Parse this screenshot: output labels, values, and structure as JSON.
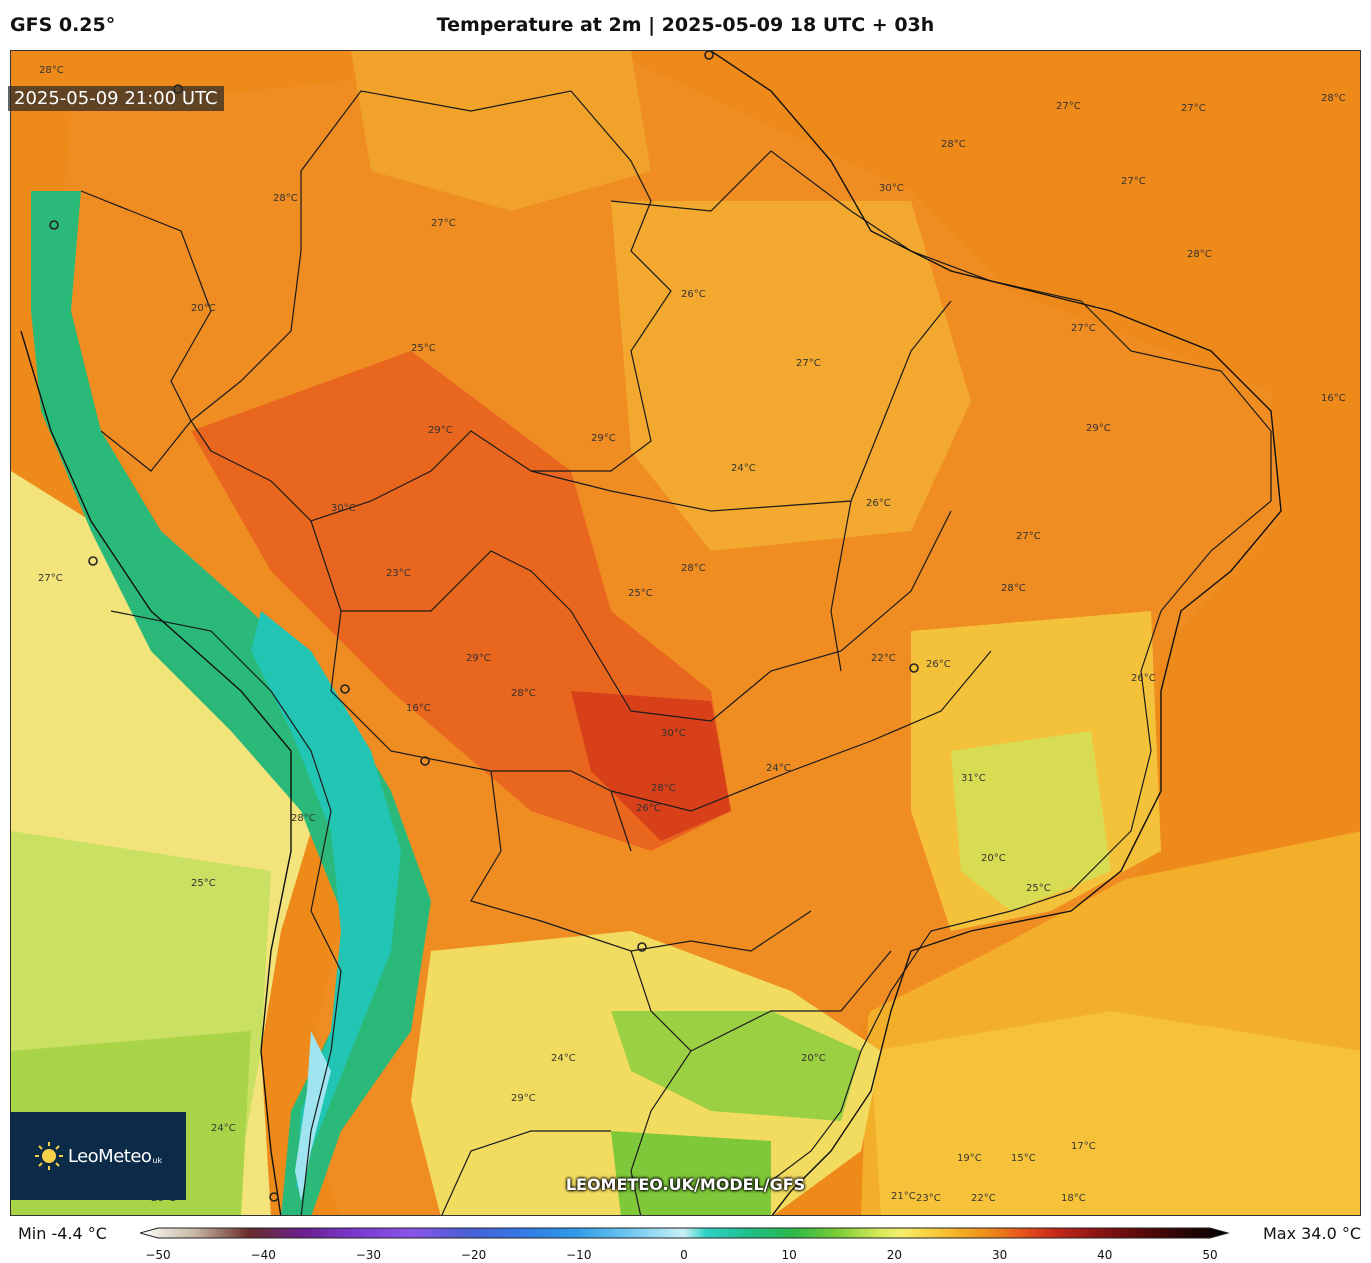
{
  "header": {
    "model": "GFS 0.25°",
    "title": "Temperature at 2m | 2025-05-09 18 UTC + 03h"
  },
  "map": {
    "timestamp": "2025-05-09 21:00 UTC",
    "watermark": "LEOMETEO.UK/MODEL/GFS",
    "isotherm_labels": [
      "28°C",
      "27°C",
      "27°C",
      "28°C",
      "27°C",
      "28°C",
      "28°C",
      "30°C",
      "27°C",
      "28°C",
      "29°C",
      "26°C",
      "27°C",
      "29°C",
      "28°C",
      "26°C",
      "27°C",
      "29°C",
      "27°C",
      "28°C",
      "24°C",
      "29°C",
      "28°C",
      "26°C",
      "25°C",
      "30°C",
      "30°C",
      "28°C",
      "26°C",
      "22°C",
      "27°C",
      "24°C",
      "26°C",
      "29°C",
      "31°C",
      "20°C",
      "20°C",
      "24°C",
      "25°C",
      "23°C",
      "19°C",
      "17°C",
      "15°C",
      "16°C",
      "18°C",
      "21°C",
      "22°C",
      "23°C",
      "24°C",
      "25°C",
      "20°C",
      "26°C",
      "28°C",
      "16°C",
      "25°C"
    ]
  },
  "logo": {
    "name": "LeoMeteo",
    "suffix": "uk"
  },
  "legend": {
    "min": "Min -4.4 °C",
    "max": "Max 34.0 °C",
    "ticks": [
      "−50",
      "−40",
      "−30",
      "−20",
      "−10",
      "0",
      "10",
      "20",
      "30",
      "40",
      "50"
    ],
    "tick_values": [
      -50,
      -40,
      -30,
      -20,
      -10,
      0,
      10,
      20,
      30,
      40,
      50
    ],
    "stops": [
      {
        "v": -50,
        "c": "#ffffff"
      },
      {
        "v": -45,
        "c": "#c8b8a4"
      },
      {
        "v": -40,
        "c": "#6a2c2a"
      },
      {
        "v": -35,
        "c": "#6a1f8f"
      },
      {
        "v": -30,
        "c": "#7a3ad0"
      },
      {
        "v": -25,
        "c": "#8a55e8"
      },
      {
        "v": -20,
        "c": "#4a5fd6"
      },
      {
        "v": -15,
        "c": "#3378e6"
      },
      {
        "v": -10,
        "c": "#2f9be8"
      },
      {
        "v": -5,
        "c": "#6fc8f0"
      },
      {
        "v": 0,
        "c": "#c8f0f4"
      },
      {
        "v": 2,
        "c": "#30d2c8"
      },
      {
        "v": 6,
        "c": "#1fbe8a"
      },
      {
        "v": 10,
        "c": "#2bb94a"
      },
      {
        "v": 14,
        "c": "#79cc35"
      },
      {
        "v": 18,
        "c": "#d7ea5a"
      },
      {
        "v": 20,
        "c": "#f6ee6e"
      },
      {
        "v": 22,
        "c": "#f8d848"
      },
      {
        "v": 25,
        "c": "#f3b328"
      },
      {
        "v": 28,
        "c": "#ee8c1a"
      },
      {
        "v": 31,
        "c": "#e6561c"
      },
      {
        "v": 34,
        "c": "#c82a1a"
      },
      {
        "v": 38,
        "c": "#8e1414"
      },
      {
        "v": 42,
        "c": "#5a0a0a"
      },
      {
        "v": 46,
        "c": "#2a0606"
      },
      {
        "v": 50,
        "c": "#000000"
      }
    ]
  },
  "colors": {
    "ocean_warm": "#ee8a1a",
    "pacific_cool": "#f2e37a",
    "andes": "#2bb97a",
    "south_cool": "#d8e860",
    "hot_core": "#d8401a",
    "atlantic_south": "#f3ae2a"
  }
}
